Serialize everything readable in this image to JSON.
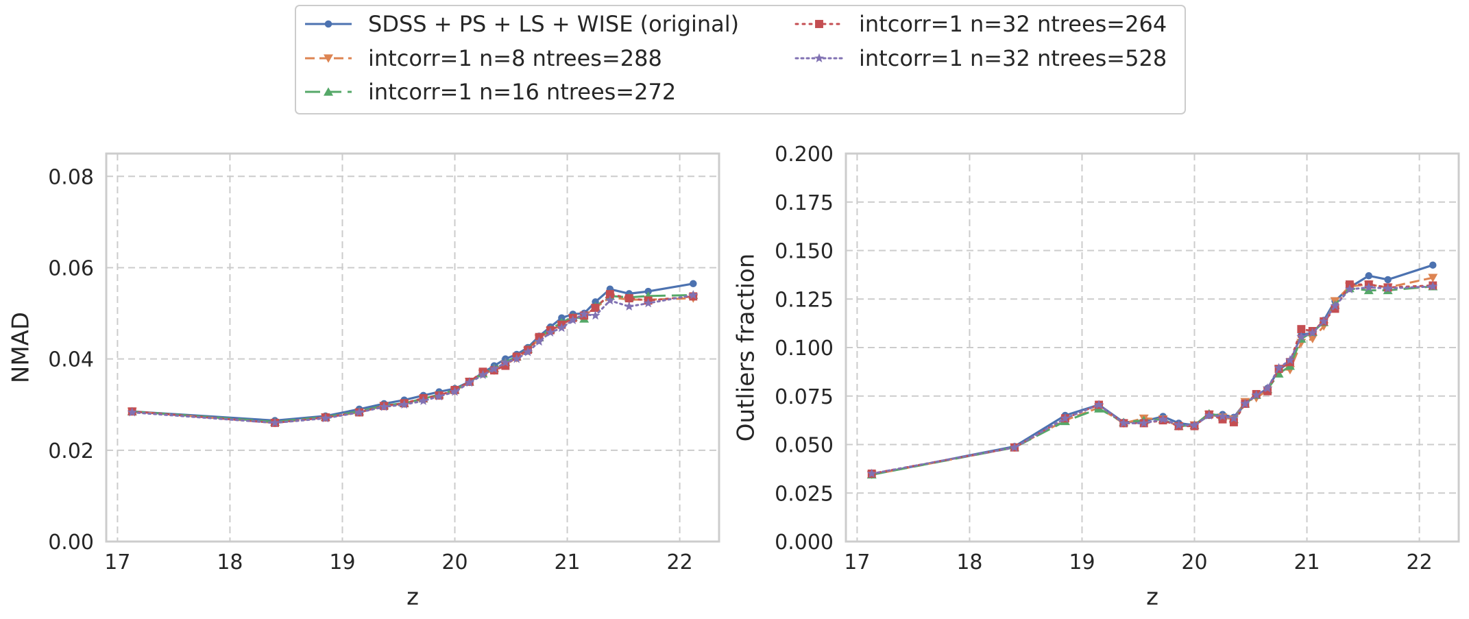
{
  "colors": {
    "series": [
      "#4c72b0",
      "#dd8452",
      "#55a868",
      "#c44e52",
      "#8172b3"
    ],
    "grid": "#cccccc",
    "spine": "#cccccc",
    "text": "#262626"
  },
  "legend": {
    "placement": "top-center, outside axes, 2 columns",
    "entries": [
      {
        "label": "SDSS + PS + LS + WISE (original)",
        "marker": "circle",
        "linestyle": "solid"
      },
      {
        "label": "intcorr=1 n=8 ntrees=288",
        "marker": "triangle-down",
        "linestyle": "dashed"
      },
      {
        "label": "intcorr=1 n=16 ntrees=272",
        "marker": "triangle-up",
        "linestyle": "long-dashed"
      },
      {
        "label": "intcorr=1 n=32 ntrees=264",
        "marker": "square",
        "linestyle": "dotted"
      },
      {
        "label": "intcorr=1 n=32 ntrees=528",
        "marker": "star",
        "linestyle": "dotted"
      }
    ]
  },
  "chart_data": [
    {
      "type": "line",
      "xlabel": "z",
      "ylabel": "NMAD",
      "xlim": [
        16.9,
        22.35
      ],
      "ylim": [
        0.0,
        0.085
      ],
      "xticks": [
        "17",
        "18",
        "19",
        "20",
        "21",
        "22"
      ],
      "yticks": [
        "0.00",
        "0.02",
        "0.04",
        "0.06",
        "0.08"
      ],
      "grid": true,
      "x": [
        17.13,
        18.4,
        18.85,
        19.15,
        19.37,
        19.55,
        19.72,
        19.86,
        20.0,
        20.13,
        20.25,
        20.35,
        20.45,
        20.55,
        20.65,
        20.75,
        20.85,
        20.95,
        21.05,
        21.15,
        21.25,
        21.38,
        21.55,
        21.72,
        22.12
      ],
      "series": [
        {
          "name": "SDSS + PS + LS + WISE (original)",
          "values": [
            0.0285,
            0.0265,
            0.0275,
            0.029,
            0.0302,
            0.031,
            0.032,
            0.0328,
            0.0335,
            0.035,
            0.037,
            0.0385,
            0.04,
            0.041,
            0.0425,
            0.045,
            0.047,
            0.049,
            0.0498,
            0.05,
            0.0525,
            0.0553,
            0.0543,
            0.0548,
            0.0565
          ]
        },
        {
          "name": "intcorr=1 n=8 ntrees=288",
          "values": [
            0.0285,
            0.026,
            0.0272,
            0.0283,
            0.0297,
            0.0302,
            0.0312,
            0.032,
            0.033,
            0.035,
            0.0368,
            0.0375,
            0.0388,
            0.0402,
            0.0418,
            0.0445,
            0.0462,
            0.0475,
            0.049,
            0.0495,
            0.0512,
            0.0535,
            0.053,
            0.053,
            0.0533
          ]
        },
        {
          "name": "intcorr=1 n=16 ntrees=272",
          "values": [
            0.0285,
            0.0262,
            0.0273,
            0.0285,
            0.0298,
            0.0303,
            0.0313,
            0.0322,
            0.0332,
            0.035,
            0.0368,
            0.038,
            0.0393,
            0.0405,
            0.0422,
            0.0447,
            0.0465,
            0.048,
            0.0492,
            0.0488,
            0.0515,
            0.0538,
            0.0535,
            0.0538,
            0.054
          ]
        },
        {
          "name": "intcorr=1 n=32 ntrees=264",
          "values": [
            0.0285,
            0.026,
            0.0272,
            0.0283,
            0.0297,
            0.0303,
            0.0314,
            0.032,
            0.0332,
            0.035,
            0.0372,
            0.0375,
            0.0385,
            0.0405,
            0.042,
            0.0448,
            0.0463,
            0.0475,
            0.049,
            0.0495,
            0.0512,
            0.0542,
            0.0533,
            0.0528,
            0.0537
          ]
        },
        {
          "name": "intcorr=1 n=32 ntrees=528",
          "values": [
            0.0283,
            0.026,
            0.027,
            0.0283,
            0.0295,
            0.03,
            0.0308,
            0.0318,
            0.0328,
            0.0348,
            0.0365,
            0.0378,
            0.0392,
            0.04,
            0.0415,
            0.0438,
            0.0458,
            0.0468,
            0.0485,
            0.0498,
            0.0495,
            0.0528,
            0.0515,
            0.0522,
            0.054
          ]
        }
      ]
    },
    {
      "type": "line",
      "xlabel": "z",
      "ylabel": "Outliers fraction",
      "xlim": [
        16.9,
        22.35
      ],
      "ylim": [
        0.0,
        0.2
      ],
      "xticks": [
        "17",
        "18",
        "19",
        "20",
        "21",
        "22"
      ],
      "yticks": [
        "0.000",
        "0.025",
        "0.050",
        "0.075",
        "0.100",
        "0.125",
        "0.150",
        "0.175",
        "0.200"
      ],
      "grid": true,
      "x": [
        17.13,
        18.4,
        18.85,
        19.15,
        19.37,
        19.55,
        19.72,
        19.86,
        20.0,
        20.13,
        20.25,
        20.35,
        20.45,
        20.55,
        20.65,
        20.75,
        20.85,
        20.95,
        21.05,
        21.15,
        21.25,
        21.38,
        21.55,
        21.72,
        22.12
      ],
      "series": [
        {
          "name": "SDSS + PS + LS + WISE (original)",
          "values": [
            0.0345,
            0.049,
            0.065,
            0.0705,
            0.0615,
            0.062,
            0.0645,
            0.061,
            0.06,
            0.065,
            0.0655,
            0.064,
            0.0715,
            0.075,
            0.079,
            0.0885,
            0.0925,
            0.1065,
            0.1075,
            0.114,
            0.124,
            0.131,
            0.137,
            0.135,
            0.1425
          ]
        },
        {
          "name": "intcorr=1 n=8 ntrees=288",
          "values": [
            0.0345,
            0.0485,
            0.0625,
            0.069,
            0.061,
            0.0635,
            0.063,
            0.0595,
            0.06,
            0.0655,
            0.064,
            0.063,
            0.072,
            0.074,
            0.078,
            0.089,
            0.0885,
            0.1025,
            0.1045,
            0.111,
            0.124,
            0.1315,
            0.1325,
            0.131,
            0.136
          ]
        },
        {
          "name": "intcorr=1 n=16 ntrees=272",
          "values": [
            0.0345,
            0.0485,
            0.062,
            0.0685,
            0.0615,
            0.0625,
            0.063,
            0.0595,
            0.06,
            0.066,
            0.0645,
            0.063,
            0.071,
            0.0755,
            0.0785,
            0.0865,
            0.0905,
            0.1045,
            0.108,
            0.113,
            0.122,
            0.1305,
            0.1295,
            0.1295,
            0.1315
          ]
        },
        {
          "name": "intcorr=1 n=32 ntrees=264",
          "values": [
            0.035,
            0.0485,
            0.0635,
            0.0705,
            0.061,
            0.061,
            0.0625,
            0.0595,
            0.0595,
            0.0655,
            0.063,
            0.0615,
            0.071,
            0.076,
            0.0775,
            0.089,
            0.0925,
            0.1095,
            0.1085,
            0.1135,
            0.12,
            0.1325,
            0.1325,
            0.131,
            0.132
          ]
        },
        {
          "name": "intcorr=1 n=32 ntrees=528",
          "values": [
            0.035,
            0.0485,
            0.0635,
            0.0705,
            0.061,
            0.061,
            0.063,
            0.06,
            0.06,
            0.065,
            0.0645,
            0.0635,
            0.071,
            0.0755,
            0.079,
            0.0895,
            0.0935,
            0.1055,
            0.1075,
            0.1135,
            0.1215,
            0.13,
            0.131,
            0.1305,
            0.1315
          ]
        }
      ]
    }
  ]
}
